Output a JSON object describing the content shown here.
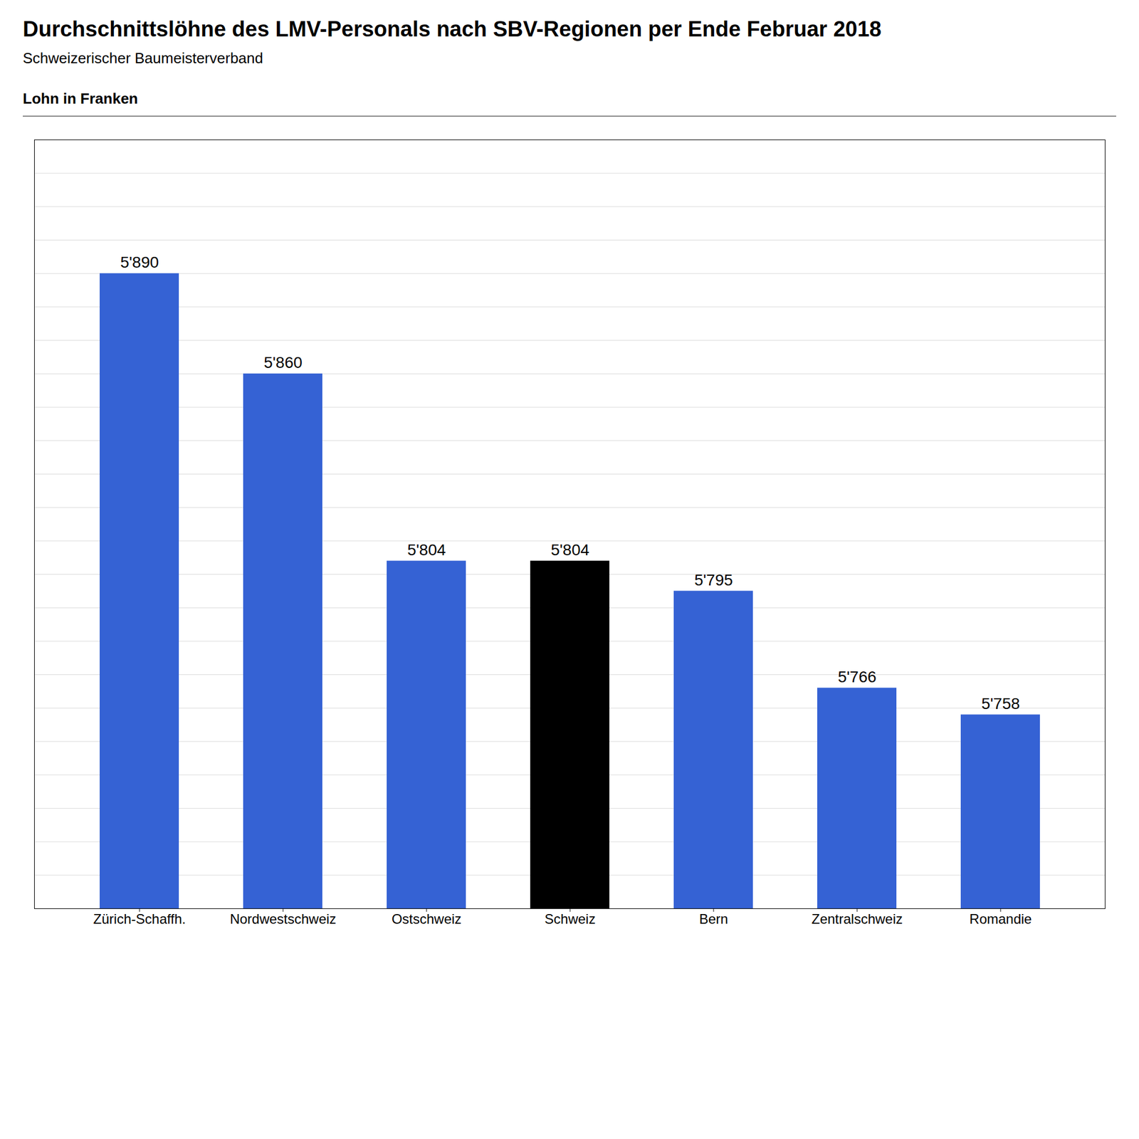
{
  "chart_data": {
    "type": "bar",
    "title": "Durchschnittslöhne des LMV-Personals nach SBV-Regionen per Ende Februar 2018",
    "subtitle": "Schweizerischer Baumeisterverband",
    "ylabel": "Lohn in Franken",
    "categories": [
      "Zürich-Schaffh.",
      "Nordwestschweiz",
      "Ostschweiz",
      "Schweiz",
      "Bern",
      "Zentralschweiz",
      "Romandie"
    ],
    "values": [
      5890,
      5860,
      5804,
      5804,
      5795,
      5766,
      5758
    ],
    "value_labels": [
      "5'890",
      "5'860",
      "5'804",
      "5'804",
      "5'795",
      "5'766",
      "5'758"
    ],
    "colors": [
      "#3562D4",
      "#3562D4",
      "#3562D4",
      "#000000",
      "#3562D4",
      "#3562D4",
      "#3562D4"
    ],
    "data_labels": true,
    "ylim": [
      5700,
      5930
    ],
    "yticks": [
      5710,
      5720,
      5730,
      5740,
      5750,
      5760,
      5770,
      5780,
      5790,
      5800,
      5810,
      5820,
      5830,
      5840,
      5850,
      5860,
      5870,
      5880,
      5890,
      5900,
      5910,
      5920
    ],
    "grid": true,
    "tick_labels": "x"
  }
}
